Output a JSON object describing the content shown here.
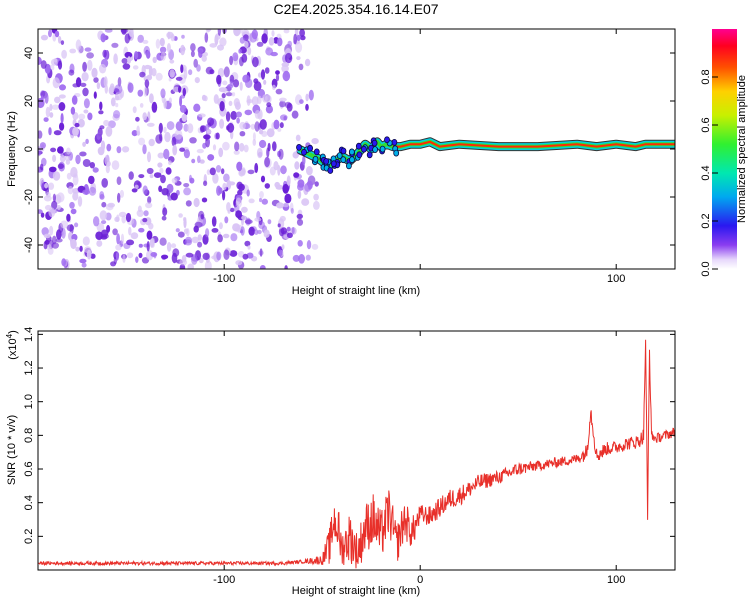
{
  "title": "C2E4.2025.354.16.14.E07",
  "colors": {
    "snr_line": "#e8302a",
    "speckle_dark": "#6a1fd6",
    "speckle_light": "#d9c4f5",
    "trace_core": "#ff2a00",
    "trace_mid": "#33dd33",
    "trace_edge": "#00d0e0"
  },
  "chart_data": [
    {
      "type": "heatmap",
      "xlabel": "Height of straight line (km)",
      "ylabel": "Frequency (Hz)",
      "xlim": [
        -195,
        130
      ],
      "ylim": [
        -50,
        50
      ],
      "xticks": [
        -100,
        0,
        100
      ],
      "xtick_labels": [
        "-100",
        "",
        "100"
      ],
      "yticks": [
        -40,
        -20,
        0,
        20,
        40
      ],
      "ytick_labels": [
        "-40",
        "-20",
        "0",
        "20",
        "40"
      ],
      "grid": false,
      "colorbar": {
        "label": "Normalized spectral amplitude",
        "range": [
          0,
          1
        ],
        "ticks": [
          0.0,
          0.2,
          0.4,
          0.6,
          0.8
        ],
        "tick_labels": [
          "0.0",
          "0.2",
          "0.4",
          "0.6",
          "0.8"
        ],
        "colormap": "rainbow"
      },
      "noise_region_x": [
        -195,
        -60
      ],
      "trace": {
        "x": [
          -62,
          -57,
          -52,
          -47,
          -43,
          -40,
          -36,
          -32,
          -28,
          -25,
          -22,
          -20,
          -17,
          -14,
          -10,
          -5,
          0,
          5,
          10,
          20,
          40,
          60,
          80,
          90,
          100,
          110,
          115,
          120,
          130
        ],
        "y": [
          0,
          -2,
          -4,
          -7,
          -5,
          -3,
          -5,
          -2,
          2,
          0,
          3,
          1,
          2,
          1,
          1,
          2,
          2,
          3,
          1,
          2,
          1,
          1,
          2,
          1,
          2,
          1,
          2,
          2,
          2
        ]
      }
    },
    {
      "type": "line",
      "xlabel": "Height of straight line (km)",
      "ylabel": "SNR (10 * v/v)",
      "y_multiplier_label": "(x10",
      "y_multiplier_exponent": "4",
      "y_multiplier_close": ")",
      "xlim": [
        -195,
        130
      ],
      "ylim": [
        0,
        1.42
      ],
      "xticks": [
        -100,
        0,
        100
      ],
      "xtick_labels": [
        "-100",
        "0",
        "100"
      ],
      "yticks": [
        0.2,
        0.4,
        0.6,
        0.8,
        1.0,
        1.2,
        1.4
      ],
      "ytick_labels": [
        "0.2",
        "0.4",
        "0.6",
        "0.8",
        "1.0",
        "1.2",
        "1.4"
      ],
      "grid": false,
      "series": [
        {
          "x": [
            -195,
            -170,
            -145,
            -120,
            -95,
            -70,
            -60,
            -50,
            -46,
            -44,
            -42,
            -40,
            -36,
            -32,
            -28,
            -24,
            -20,
            -16,
            -12,
            -8,
            -4,
            0,
            5,
            10,
            15,
            20,
            25,
            30,
            40,
            50,
            60,
            70,
            80,
            85,
            87,
            90,
            95,
            100,
            105,
            110,
            112,
            114,
            115,
            116,
            117,
            118,
            120,
            125,
            130
          ],
          "y": [
            0.04,
            0.04,
            0.04,
            0.04,
            0.04,
            0.04,
            0.05,
            0.06,
            0.15,
            0.3,
            0.25,
            0.12,
            0.2,
            0.1,
            0.25,
            0.3,
            0.2,
            0.35,
            0.15,
            0.3,
            0.22,
            0.33,
            0.32,
            0.37,
            0.42,
            0.44,
            0.48,
            0.52,
            0.55,
            0.6,
            0.62,
            0.64,
            0.66,
            0.7,
            0.95,
            0.68,
            0.72,
            0.73,
            0.75,
            0.76,
            0.77,
            0.8,
            1.38,
            0.3,
            1.3,
            0.8,
            0.78,
            0.8,
            0.82
          ],
          "noise": [
            0.01,
            0.01,
            0.01,
            0.01,
            0.01,
            0.01,
            0.01,
            0.03,
            0.12,
            0.12,
            0.15,
            0.1,
            0.15,
            0.12,
            0.15,
            0.16,
            0.15,
            0.15,
            0.12,
            0.12,
            0.1,
            0.06,
            0.06,
            0.06,
            0.06,
            0.06,
            0.05,
            0.05,
            0.04,
            0.04,
            0.03,
            0.03,
            0.03,
            0.05,
            0.05,
            0.05,
            0.04,
            0.04,
            0.04,
            0.04,
            0.04,
            0.05,
            0.05,
            0.05,
            0.05,
            0.03,
            0.03,
            0.03,
            0.03
          ]
        }
      ]
    }
  ]
}
